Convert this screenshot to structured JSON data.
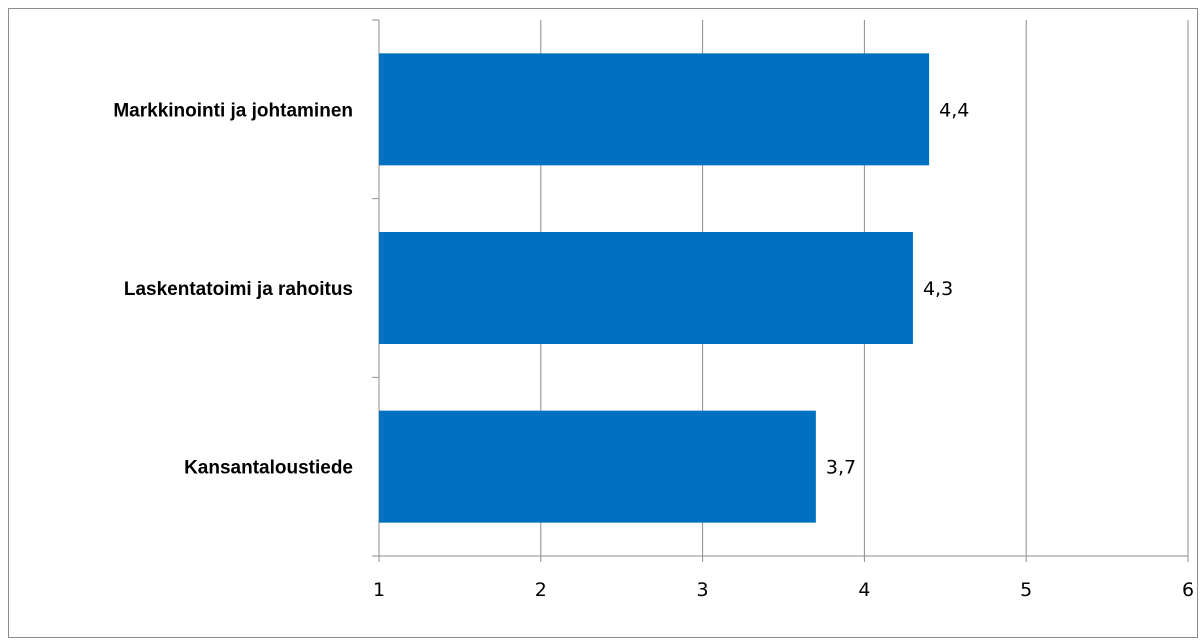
{
  "chart_data": {
    "type": "bar",
    "orientation": "horizontal",
    "title": "",
    "xlabel": "",
    "ylabel": "",
    "categories": [
      "Markkinointi ja johtaminen",
      "Laskentatoimi ja rahoitus",
      "Kansantaloustiede"
    ],
    "values": [
      4.4,
      4.3,
      3.7
    ],
    "data_labels": [
      "4,4",
      "4,3",
      "3,7"
    ],
    "xlim": [
      1,
      6
    ],
    "x_ticks": [
      1,
      2,
      3,
      4,
      5,
      6
    ],
    "x_tick_labels": [
      "1",
      "2",
      "3",
      "4",
      "5",
      "6"
    ],
    "grid": "vertical",
    "legend": "none",
    "colors": {
      "bar": "#0070c0",
      "grid": "#8c8c8c",
      "axis": "#8c8c8c"
    }
  }
}
